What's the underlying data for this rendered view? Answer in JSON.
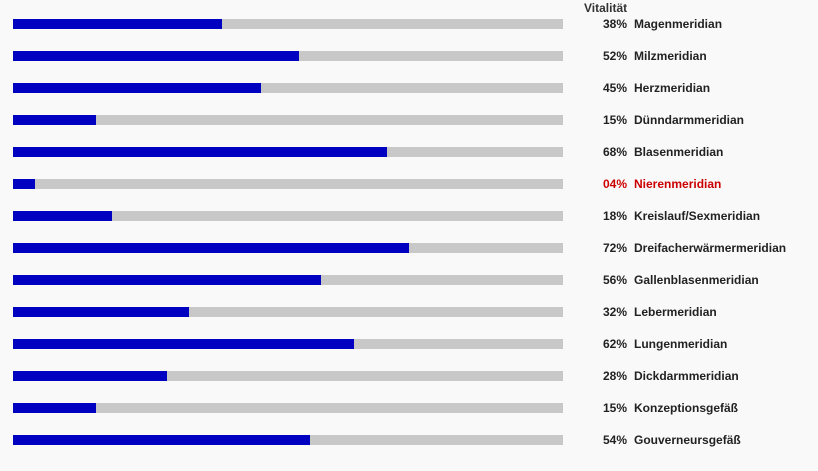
{
  "header": {
    "label": "Vitalität"
  },
  "colors": {
    "bar_fill": "#0000c0",
    "bar_track": "#c8c8c8",
    "alert": "#cc0000",
    "text": "#222222"
  },
  "chart_data": {
    "type": "bar",
    "orientation": "horizontal",
    "title": "Vitalität",
    "xlim": [
      0,
      100
    ],
    "grid": false,
    "categories": [
      "Magenmeridian",
      "Milzmeridian",
      "Herzmeridian",
      "Dünndarmmeridian",
      "Blasenmeridian",
      "Nierenmeridian",
      "Kreislauf/Sexmeridian",
      "Dreifacherwärmermeridian",
      "Gallenblasenmeridian",
      "Lebermeridian",
      "Lungenmeridian",
      "Dickdarmmeridian",
      "Konzeptionsgefäß",
      "Gouverneursgefäß"
    ],
    "values": [
      38,
      52,
      45,
      15,
      68,
      4,
      18,
      72,
      56,
      32,
      62,
      28,
      15,
      54
    ],
    "value_labels": [
      "38%",
      "52%",
      "45%",
      "15%",
      "68%",
      "04%",
      "18%",
      "72%",
      "56%",
      "32%",
      "62%",
      "28%",
      "15%",
      "54%"
    ],
    "highlighted": [
      "Nierenmeridian"
    ]
  }
}
